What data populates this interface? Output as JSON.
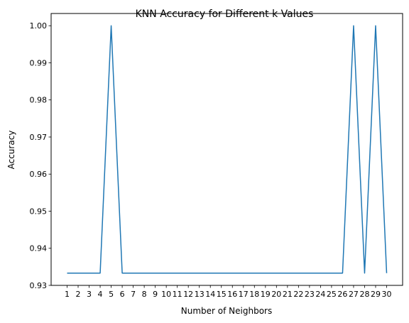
{
  "chart_data": {
    "type": "line",
    "title": "KNN Accuracy for Different k Values",
    "xlabel": "Number of Neighbors",
    "ylabel": "Accuracy",
    "x": [
      1,
      2,
      3,
      4,
      5,
      6,
      7,
      8,
      9,
      10,
      11,
      12,
      13,
      14,
      15,
      16,
      17,
      18,
      19,
      20,
      21,
      22,
      23,
      24,
      25,
      26,
      27,
      28,
      29,
      30
    ],
    "xticks": [
      "1",
      "2",
      "3",
      "4",
      "5",
      "6",
      "7",
      "8",
      "9",
      "10",
      "11",
      "12",
      "13",
      "14",
      "15",
      "16",
      "17",
      "18",
      "19",
      "20",
      "21",
      "22",
      "23",
      "24",
      "25",
      "26",
      "27",
      "28",
      "29",
      "30"
    ],
    "yticks": [
      "0.93",
      "0.94",
      "0.95",
      "0.96",
      "0.97",
      "0.98",
      "0.99",
      "1.00"
    ],
    "ylim": [
      0.93,
      1.0033
    ],
    "xlim": [
      -0.45,
      31.45
    ],
    "series": [
      {
        "values": [
          0.9333,
          0.9333,
          0.9333,
          0.9333,
          1.0,
          0.9333,
          0.9333,
          0.9333,
          0.9333,
          0.9333,
          0.9333,
          0.9333,
          0.9333,
          0.9333,
          0.9333,
          0.9333,
          0.9333,
          0.9333,
          0.9333,
          0.9333,
          0.9333,
          0.9333,
          0.9333,
          0.9333,
          0.9333,
          0.9333,
          1.0,
          0.9333,
          1.0,
          0.9333
        ],
        "color": "#1f77b4"
      }
    ],
    "grid": false,
    "legend": "none"
  }
}
